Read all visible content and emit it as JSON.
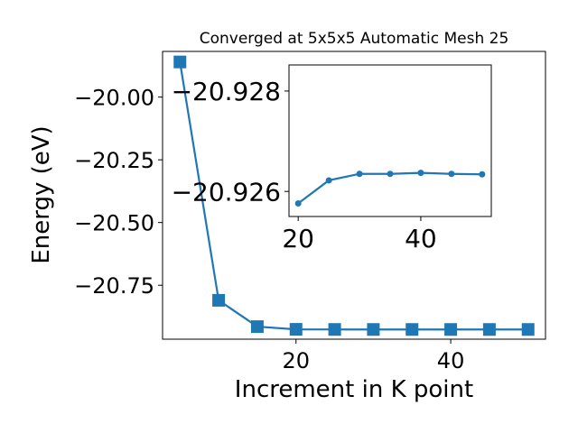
{
  "chart_data": [
    {
      "type": "line",
      "title": "Converged at 5x5x5 Automatic Mesh 25",
      "xlabel": "Increment in K point",
      "ylabel": "Energy (eV)",
      "x": [
        5,
        10,
        15,
        20,
        25,
        30,
        35,
        40,
        45,
        50
      ],
      "series": [
        {
          "values": [
            -19.86,
            -20.81,
            -20.915,
            -20.9258,
            -20.9262,
            -20.9263,
            -20.9263,
            -20.9263,
            -20.9263,
            -20.9263
          ]
        }
      ],
      "xlim": [
        2.75,
        52.25
      ],
      "ylim": [
        -20.965,
        -19.818
      ],
      "xticks": [
        20,
        40
      ],
      "xtick_labels": [
        "20",
        "40"
      ],
      "yticks": [
        -20.0,
        -20.25,
        -20.5,
        -20.75
      ],
      "ytick_labels": [
        "−20.00",
        "−20.25",
        "−20.50",
        "−20.75"
      ],
      "marker": "square",
      "color": "#1f77b4",
      "grid": false
    },
    {
      "type": "line",
      "title": "",
      "xlabel": "",
      "ylabel": "",
      "x": [
        20,
        25,
        30,
        35,
        40,
        45,
        50
      ],
      "series": [
        {
          "values": [
            -20.92576,
            -20.92622,
            -20.92635,
            -20.92635,
            -20.92637,
            -20.92635,
            -20.92634
          ]
        }
      ],
      "xlim": [
        18.5,
        51.5
      ],
      "ylim": [
        -20.9255,
        -20.92852
      ],
      "xticks": [
        20,
        40
      ],
      "xtick_labels": [
        "20",
        "40"
      ],
      "yticks": [
        -20.926,
        -20.928
      ],
      "ytick_labels": [
        "−20.926",
        "−20.928"
      ],
      "marker": "circle",
      "color": "#1f77b4",
      "grid": false
    }
  ]
}
